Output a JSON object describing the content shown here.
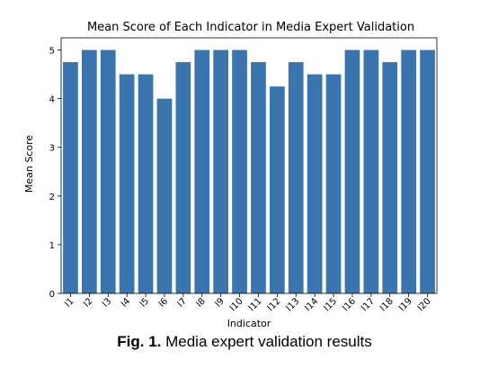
{
  "chart_data": {
    "type": "bar",
    "title": "Mean Score of Each Indicator in Media Expert Validation",
    "xlabel": "Indicator",
    "ylabel": "Mean Score",
    "categories": [
      "I1",
      "I2",
      "I3",
      "I4",
      "I5",
      "I6",
      "I7",
      "I8",
      "I9",
      "I10",
      "I11",
      "I12",
      "I13",
      "I14",
      "I15",
      "I16",
      "I17",
      "I18",
      "I19",
      "I20"
    ],
    "values": [
      4.75,
      5,
      5,
      4.5,
      4.5,
      4,
      4.75,
      5,
      5,
      5,
      4.75,
      4.25,
      4.75,
      4.5,
      4.5,
      5,
      5,
      4.75,
      5,
      5
    ],
    "ylim": [
      0,
      5.25
    ],
    "yticks": [
      "0",
      "1",
      "2",
      "3",
      "4",
      "5"
    ],
    "grid": false,
    "bar_color": "#3b75af"
  },
  "caption": {
    "label": "Fig. 1.",
    "text": "Media expert validation results"
  }
}
